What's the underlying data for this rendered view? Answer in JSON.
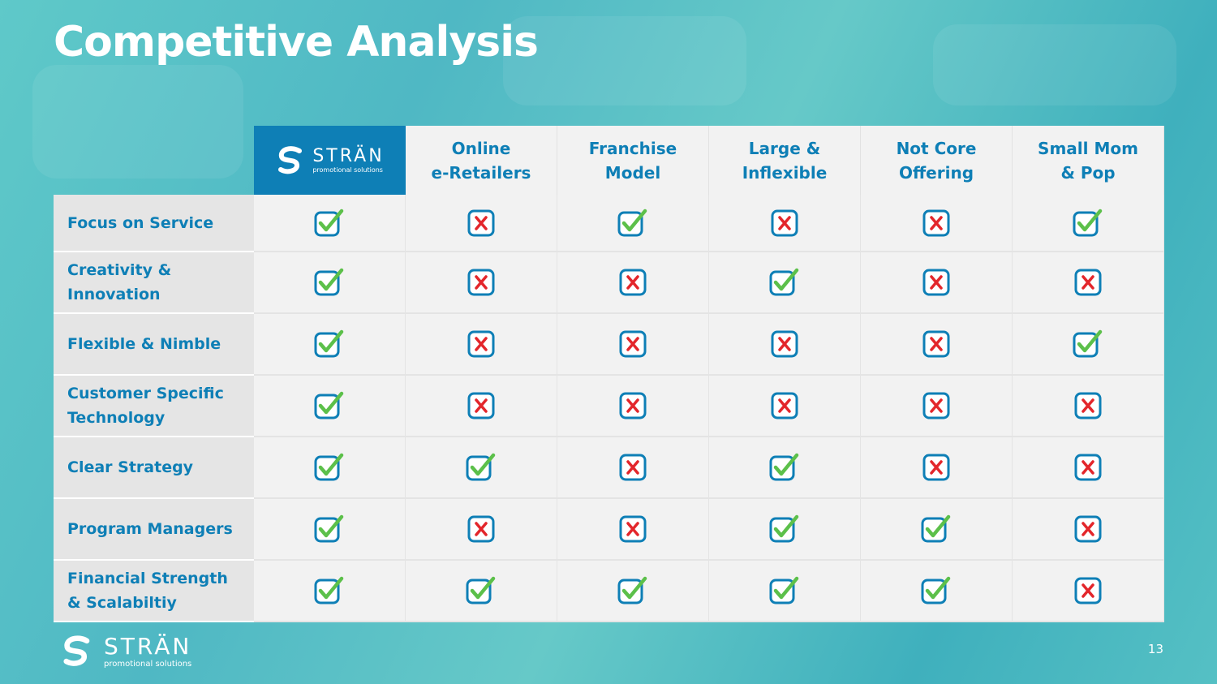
{
  "slide": {
    "title": "Competitive Analysis",
    "page_number": "13"
  },
  "brand": {
    "name": "STRÄN",
    "tagline": "promotional solutions"
  },
  "table": {
    "columns": [
      "Online\ne-Retailers",
      "Franchise\nModel",
      "Large &\nInflexible",
      "Not Core\nOffering",
      "Small Mom\n& Pop"
    ],
    "rows": [
      {
        "label": "Focus on Service",
        "marks": [
          true,
          false,
          true,
          false,
          false,
          true
        ]
      },
      {
        "label": "Creativity &\nInnovation",
        "marks": [
          true,
          false,
          false,
          true,
          false,
          false
        ]
      },
      {
        "label": "Flexible & Nimble",
        "marks": [
          true,
          false,
          false,
          false,
          false,
          true
        ]
      },
      {
        "label": "Customer Specific\nTechnology",
        "marks": [
          true,
          false,
          false,
          false,
          false,
          false
        ]
      },
      {
        "label": "Clear Strategy",
        "marks": [
          true,
          true,
          false,
          true,
          false,
          false
        ]
      },
      {
        "label": "Program Managers",
        "marks": [
          true,
          false,
          false,
          true,
          true,
          false
        ]
      },
      {
        "label": "Financial Strength\n& Scalabiltiy",
        "marks": [
          true,
          true,
          true,
          true,
          true,
          false
        ]
      }
    ]
  },
  "colors": {
    "accent": "#0e7fb6",
    "check": "#5cc04a",
    "cross": "#e3262b",
    "box": "#0e7fb6"
  },
  "icons": {
    "check": "checkbox-checked-icon",
    "cross": "checkbox-cross-icon",
    "logo": "stran-s-logo-icon"
  }
}
